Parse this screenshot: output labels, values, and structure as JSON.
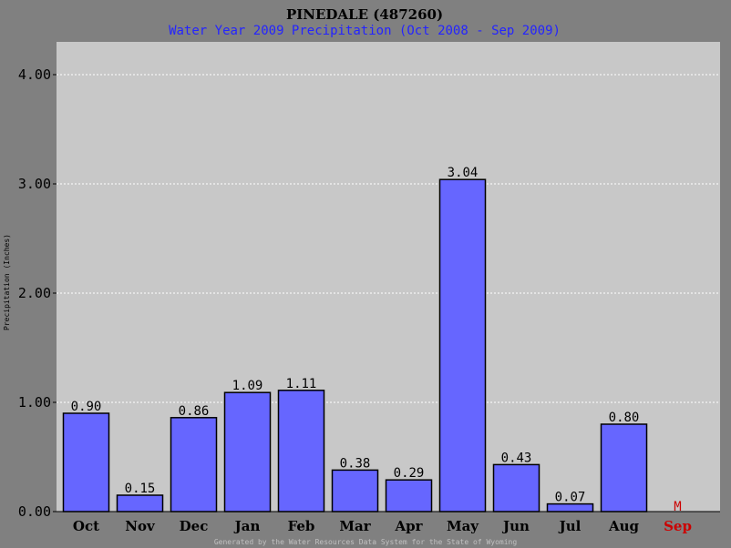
{
  "colors": {
    "background": "#808080",
    "plot_area": "#c8c8c8",
    "bar_fill": "#6666ff",
    "bar_stroke": "#000000",
    "gridline": "#ffffff",
    "title": "#000000",
    "subtitle": "#2424ff",
    "missing": "#cc0000",
    "footer": "#c0c0c0"
  },
  "chart_data": {
    "type": "bar",
    "title": "PINEDALE (487260)",
    "subtitle": "Water Year 2009 Precipitation (Oct 2008 - Sep 2009)",
    "ylabel": "Precipitation (Inches)",
    "xlabel": "",
    "ylim": [
      0,
      4.4
    ],
    "yticks": [
      0,
      1,
      2,
      3,
      4
    ],
    "ytick_labels": [
      "0.00",
      "1.00",
      "2.00",
      "3.00",
      "4.00"
    ],
    "grid": true,
    "categories": [
      "Oct",
      "Nov",
      "Dec",
      "Jan",
      "Feb",
      "Mar",
      "Apr",
      "May",
      "Jun",
      "Jul",
      "Aug",
      "Sep"
    ],
    "values": [
      0.9,
      0.15,
      0.86,
      1.09,
      1.11,
      0.38,
      0.29,
      3.04,
      0.43,
      0.07,
      0.8,
      null
    ],
    "value_labels": [
      "0.90",
      "0.15",
      "0.86",
      "1.09",
      "1.11",
      "0.38",
      "0.29",
      "3.04",
      "0.43",
      "0.07",
      "0.80",
      "M"
    ],
    "missing_categories": [
      "Sep"
    ]
  },
  "footer": "Generated by the Water Resources Data System for the State of Wyoming"
}
